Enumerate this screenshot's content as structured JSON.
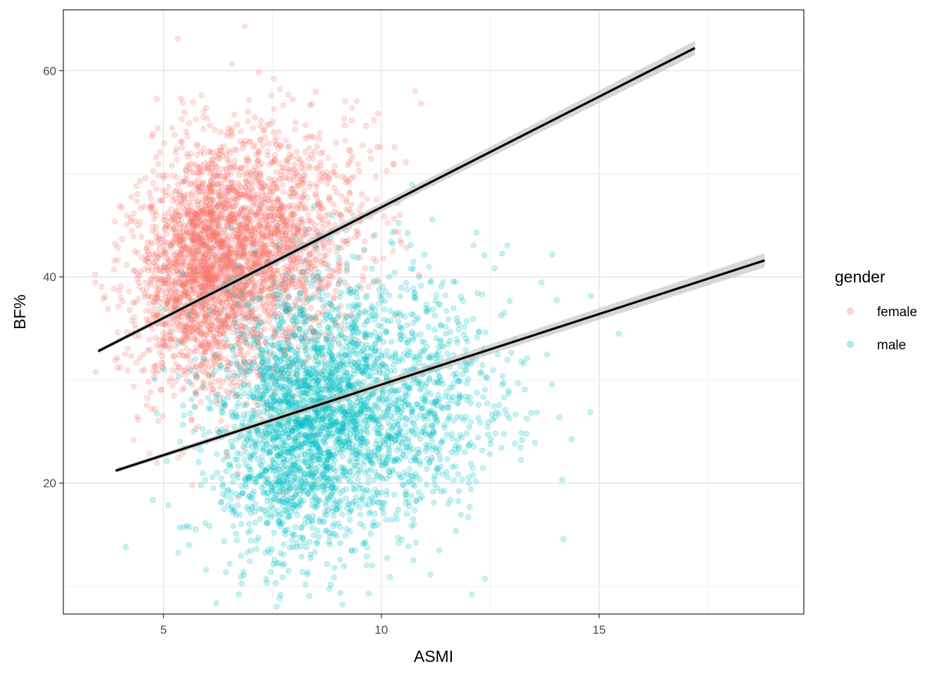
{
  "chart_data": {
    "type": "scatter",
    "title": "",
    "xlabel": "ASMI",
    "ylabel": "BF%",
    "xlim": [
      2.7,
      19.7
    ],
    "ylim": [
      7.3,
      65.9
    ],
    "x_ticks": [
      5,
      10,
      15
    ],
    "y_ticks": [
      20,
      40,
      60
    ],
    "grid": true,
    "legend": {
      "title": "gender",
      "position": "right"
    },
    "colors": {
      "female": "#F8766D",
      "male": "#00BFC4",
      "fit": "#000000",
      "ribbon": "#bdbdbd"
    },
    "series": [
      {
        "name": "female",
        "cloud": {
          "center": [
            6.3,
            41.5
          ],
          "sd": [
            1.15,
            5.8
          ],
          "n": 3500
        },
        "fit_line": {
          "x": [
            3.5,
            17.2
          ],
          "y": [
            32.8,
            62.2
          ]
        }
      },
      {
        "name": "male",
        "cloud": {
          "center": [
            8.6,
            26.5
          ],
          "sd": [
            1.45,
            6.2
          ],
          "n": 3200
        },
        "fit_line": {
          "x": [
            3.9,
            18.8
          ],
          "y": [
            21.2,
            41.6
          ]
        }
      }
    ]
  }
}
